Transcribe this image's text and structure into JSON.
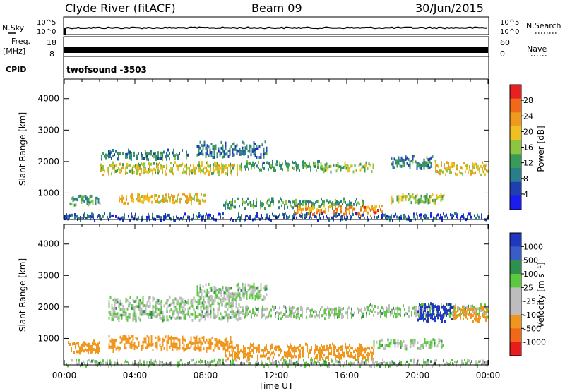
{
  "header": {
    "station": "Clyde River (fitACF)",
    "beam": "Beam 09",
    "date": "30/Jun/2015"
  },
  "strips": {
    "nsky_label": "N.Sky",
    "nsky_ticks": [
      "10^5",
      "10^0"
    ],
    "nsearch_label": "N.Search",
    "nsearch_ticks": [
      "10^5",
      "10^0"
    ],
    "freq_label": "Freq.",
    "freq_unit": "[MHz]",
    "freq_ticks": [
      "18",
      "8"
    ],
    "nave_label": "Nave",
    "nave_ticks": [
      "60",
      "0"
    ],
    "cpid_label": "CPID",
    "cpid_value": "twofsound -3503"
  },
  "colors": {
    "power": [
      "#1c1cf0",
      "#1f3fb0",
      "#2a7e8c",
      "#3a9a5a",
      "#8cc640",
      "#f0c020",
      "#f09a1c",
      "#f06818",
      "#e82020"
    ],
    "velocity": [
      "#e81c1c",
      "#f06818",
      "#f0961c",
      "#bdbdbd",
      "#bdbdbd",
      "#5cc840",
      "#2f8f4f",
      "#3a5cc8",
      "#2038c0"
    ]
  },
  "chart_data": [
    {
      "type": "heatmap",
      "ylabel": "Slant Range [km]",
      "ylim": [
        180,
        4600
      ],
      "yticks": [
        "4000",
        "3000",
        "2000",
        "1000"
      ],
      "colorbar_label": "Power [dB]",
      "colorbar_ticks": [
        "28",
        "24",
        "20",
        "16",
        "12",
        "8",
        "4"
      ],
      "colorbar_range": [
        0,
        32
      ],
      "bands": [
        {
          "x": [
            2.0,
            10.0
          ],
          "y": [
            1650,
            1950
          ],
          "v": 18
        },
        {
          "x": [
            10.0,
            14.5
          ],
          "y": [
            1750,
            2000
          ],
          "v": 12
        },
        {
          "x": [
            14.5,
            17.5
          ],
          "y": [
            1700,
            1950
          ],
          "v": 16
        },
        {
          "x": [
            18.5,
            21.0
          ],
          "y": [
            1850,
            2150
          ],
          "v": 10
        },
        {
          "x": [
            21.0,
            24.0
          ],
          "y": [
            1650,
            1950
          ],
          "v": 20
        },
        {
          "x": [
            2.0,
            7.0
          ],
          "y": [
            2100,
            2350
          ],
          "v": 10
        },
        {
          "x": [
            7.5,
            11.5
          ],
          "y": [
            2200,
            2600
          ],
          "v": 8
        },
        {
          "x": [
            3.0,
            8.0
          ],
          "y": [
            700,
            950
          ],
          "v": 20
        },
        {
          "x": [
            0.3,
            2.0
          ],
          "y": [
            700,
            900
          ],
          "v": 12
        },
        {
          "x": [
            9.0,
            17.0
          ],
          "y": [
            550,
            800
          ],
          "v": 12
        },
        {
          "x": [
            13.0,
            18.0
          ],
          "y": [
            380,
            560
          ],
          "v": 24
        },
        {
          "x": [
            18.5,
            21.5
          ],
          "y": [
            750,
            950
          ],
          "v": 16
        },
        {
          "x": [
            0.0,
            24.0
          ],
          "y": [
            200,
            320
          ],
          "v": 6
        }
      ]
    },
    {
      "type": "heatmap",
      "xlabel": "Time UT",
      "ylabel": "Slant Range [km]",
      "ylim": [
        180,
        4600
      ],
      "xlim": [
        0,
        24
      ],
      "xticks": [
        "00:00",
        "04:00",
        "08:00",
        "12:00",
        "16:00",
        "20:00",
        "00:00"
      ],
      "yticks": [
        "4000",
        "3000",
        "2000",
        "1000"
      ],
      "colorbar_label": "Velocity [m s⁻¹]",
      "colorbar_ticks": [
        "1000",
        "500",
        "100",
        "25",
        "-25",
        "-100",
        "-500",
        "-1000"
      ],
      "bands": [
        {
          "x": [
            2.5,
            10.0
          ],
          "y": [
            1650,
            2300
          ],
          "v": 0
        },
        {
          "x": [
            10.0,
            17.0
          ],
          "y": [
            1700,
            2000
          ],
          "v": 0
        },
        {
          "x": [
            17.0,
            24.0
          ],
          "y": [
            1700,
            2050
          ],
          "v": 0
        },
        {
          "x": [
            7.5,
            11.5
          ],
          "y": [
            2300,
            2700
          ],
          "v": 0
        },
        {
          "x": [
            20.0,
            22.0
          ],
          "y": [
            1600,
            2100
          ],
          "v": 800
        },
        {
          "x": [
            22.0,
            24.0
          ],
          "y": [
            1600,
            2000
          ],
          "v": -200
        },
        {
          "x": [
            2.5,
            9.5
          ],
          "y": [
            650,
            1050
          ],
          "v": -150
        },
        {
          "x": [
            0.2,
            2.0
          ],
          "y": [
            600,
            900
          ],
          "v": -200
        },
        {
          "x": [
            9.0,
            17.5
          ],
          "y": [
            400,
            800
          ],
          "v": -150
        },
        {
          "x": [
            17.5,
            21.5
          ],
          "y": [
            700,
            950
          ],
          "v": 0
        },
        {
          "x": [
            0.0,
            24.0
          ],
          "y": [
            200,
            300
          ],
          "v": 0
        }
      ]
    }
  ]
}
